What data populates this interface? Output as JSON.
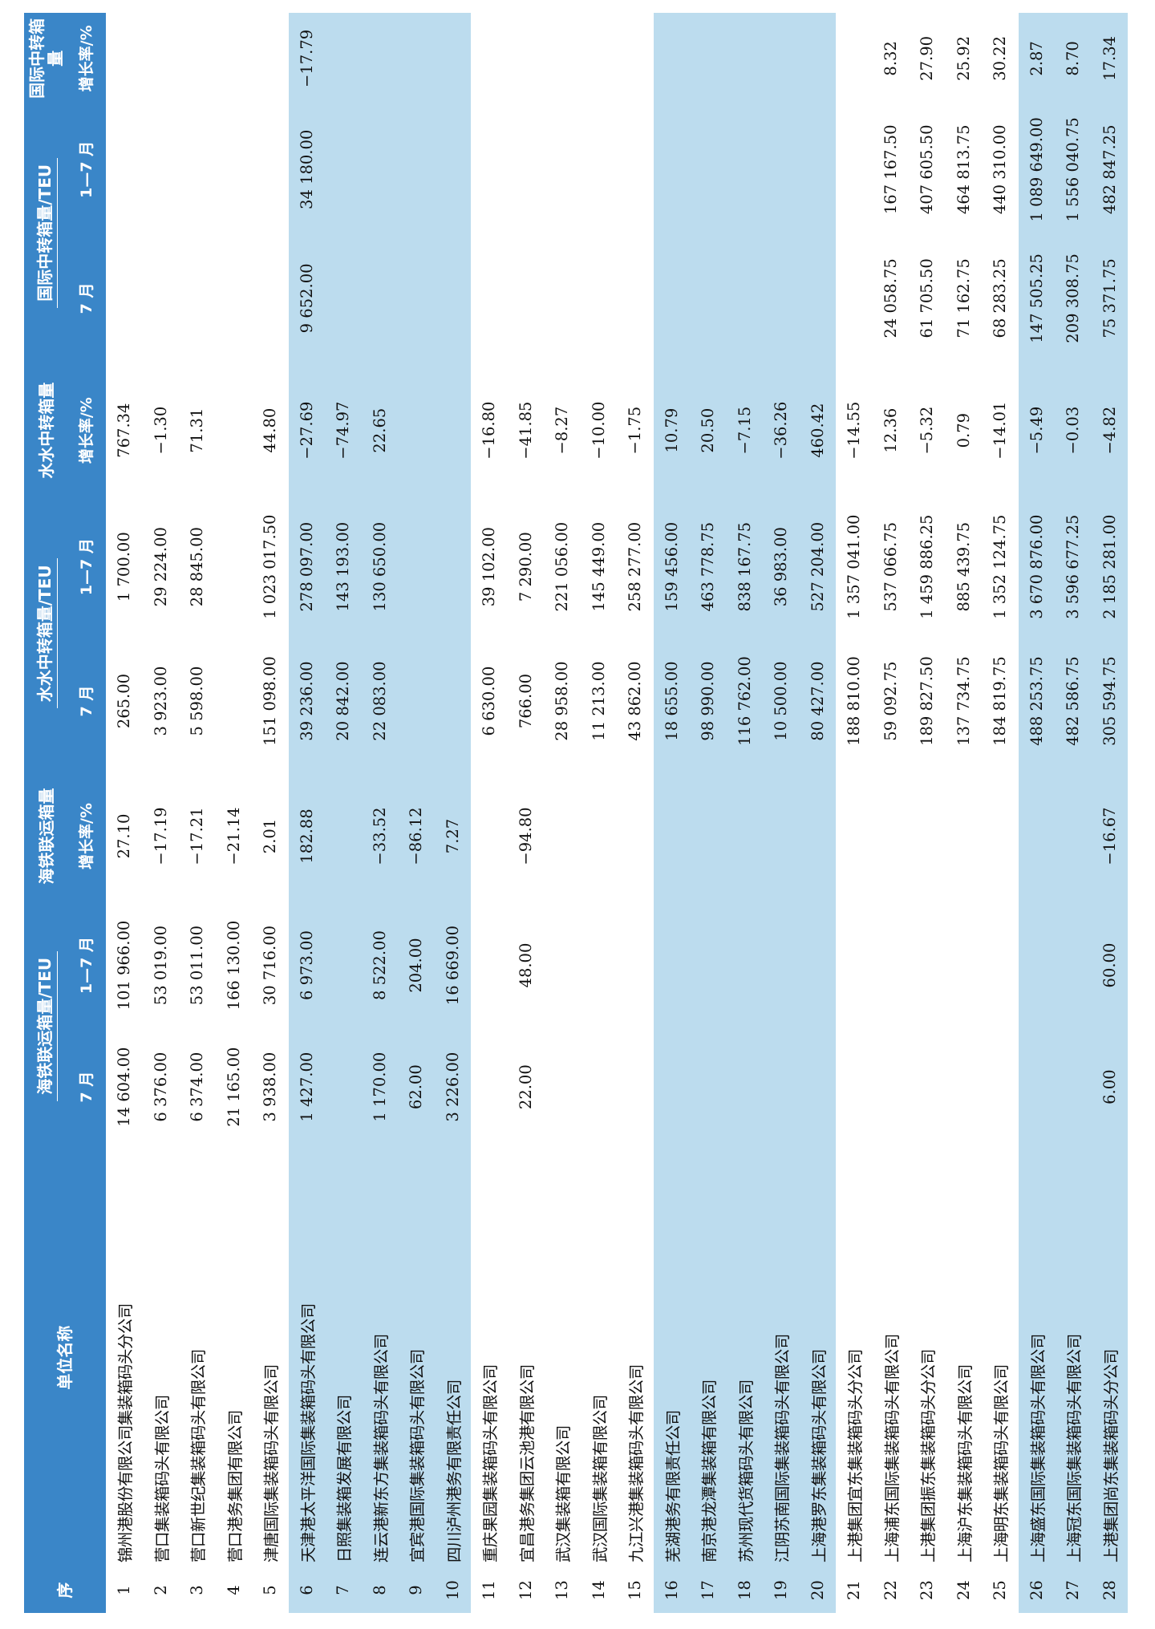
{
  "headers": {
    "seq": "序",
    "name": "单位名称",
    "groups": [
      "海铁联运箱量/TEU",
      "海铁联运箱量",
      "水水中转箱量/TEU",
      "水水中转箱量",
      "国际中转箱量/TEU",
      "国际中转箱量"
    ],
    "sub": [
      "7 月",
      "1—7 月",
      "增长率/%",
      "7 月",
      "1—7 月",
      "增长率/%",
      "7 月",
      "1—7 月",
      "增长率/%"
    ]
  },
  "rows": [
    {
      "seq": "1",
      "name": "锦州港股份有限公司集装箱码头分公司",
      "v": [
        "14 604.00",
        "101 966.00",
        "27.10",
        "265.00",
        "1 700.00",
        "767.34",
        "",
        "",
        ""
      ],
      "shade": false
    },
    {
      "seq": "2",
      "name": "营口集装箱码头有限公司",
      "v": [
        "6 376.00",
        "53 019.00",
        "−17.19",
        "3 923.00",
        "29 224.00",
        "−1.30",
        "",
        "",
        ""
      ],
      "shade": false
    },
    {
      "seq": "3",
      "name": "营口新世纪集装箱码头有限公司",
      "v": [
        "6 374.00",
        "53 011.00",
        "−17.21",
        "5 598.00",
        "28 845.00",
        "71.31",
        "",
        "",
        ""
      ],
      "shade": false
    },
    {
      "seq": "4",
      "name": "营口港务集团有限公司",
      "v": [
        "21 165.00",
        "166 130.00",
        "−21.14",
        "",
        "",
        "",
        "",
        "",
        ""
      ],
      "shade": false
    },
    {
      "seq": "5",
      "name": "津唐国际集装箱码头有限公司",
      "v": [
        "3 938.00",
        "30 716.00",
        "2.01",
        "151 098.00",
        "1 023 017.50",
        "44.80",
        "",
        "",
        ""
      ],
      "shade": false
    },
    {
      "seq": "6",
      "name": "天津港太平洋国际集装箱码头有限公司",
      "v": [
        "1 427.00",
        "6 973.00",
        "182.88",
        "39 236.00",
        "278 097.00",
        "−27.69",
        "9 652.00",
        "34 180.00",
        "−17.79"
      ],
      "shade": true
    },
    {
      "seq": "7",
      "name": "日照集装箱发展有限公司",
      "v": [
        "",
        "",
        "",
        "20 842.00",
        "143 193.00",
        "−74.97",
        "",
        "",
        ""
      ],
      "shade": true
    },
    {
      "seq": "8",
      "name": "连云港新东方集装箱码头有限公司",
      "v": [
        "1 170.00",
        "8 522.00",
        "−33.52",
        "22 083.00",
        "130 650.00",
        "22.65",
        "",
        "",
        ""
      ],
      "shade": true
    },
    {
      "seq": "9",
      "name": "宜宾港国际集装箱码头有限公司",
      "v": [
        "62.00",
        "204.00",
        "−86.12",
        "",
        "",
        "",
        "",
        "",
        ""
      ],
      "shade": true
    },
    {
      "seq": "10",
      "name": "四川泸州港务有限责任公司",
      "v": [
        "3 226.00",
        "16 669.00",
        "7.27",
        "",
        "",
        "",
        "",
        "",
        ""
      ],
      "shade": true
    },
    {
      "seq": "11",
      "name": "重庆果园集装箱码头有限公司",
      "v": [
        "",
        "",
        "",
        "6 630.00",
        "39 102.00",
        "−16.80",
        "",
        "",
        ""
      ],
      "shade": false
    },
    {
      "seq": "12",
      "name": "宜昌港务集团云池港有限公司",
      "v": [
        "22.00",
        "48.00",
        "−94.80",
        "766.00",
        "7 290.00",
        "−41.85",
        "",
        "",
        ""
      ],
      "shade": false
    },
    {
      "seq": "13",
      "name": "武汉集装箱有限公司",
      "v": [
        "",
        "",
        "",
        "28 958.00",
        "221 056.00",
        "−8.27",
        "",
        "",
        ""
      ],
      "shade": false
    },
    {
      "seq": "14",
      "name": "武汉国际集装箱有限公司",
      "v": [
        "",
        "",
        "",
        "11 213.00",
        "145 449.00",
        "−10.00",
        "",
        "",
        ""
      ],
      "shade": false
    },
    {
      "seq": "15",
      "name": "九江兴港集装箱码头有限公司",
      "v": [
        "",
        "",
        "",
        "43 862.00",
        "258 277.00",
        "−1.75",
        "",
        "",
        ""
      ],
      "shade": false
    },
    {
      "seq": "16",
      "name": "芜湖港务有限责任公司",
      "v": [
        "",
        "",
        "",
        "18 655.00",
        "159 456.00",
        "10.79",
        "",
        "",
        ""
      ],
      "shade": true
    },
    {
      "seq": "17",
      "name": "南京港龙潭集装箱有限公司",
      "v": [
        "",
        "",
        "",
        "98 990.00",
        "463 778.75",
        "20.50",
        "",
        "",
        ""
      ],
      "shade": true
    },
    {
      "seq": "18",
      "name": "苏州现代货箱码头有限公司",
      "v": [
        "",
        "",
        "",
        "116 762.00",
        "838 167.75",
        "−7.15",
        "",
        "",
        ""
      ],
      "shade": true
    },
    {
      "seq": "19",
      "name": "江阴苏南国际集装箱码头有限公司",
      "v": [
        "",
        "",
        "",
        "10 500.00",
        "36 983.00",
        "−36.26",
        "",
        "",
        ""
      ],
      "shade": true
    },
    {
      "seq": "20",
      "name": "上海港罗东集装箱码头有限公司",
      "v": [
        "",
        "",
        "",
        "80 427.00",
        "527 204.00",
        "460.42",
        "",
        "",
        ""
      ],
      "shade": true
    },
    {
      "seq": "21",
      "name": "上港集团宜东集装箱码头分公司",
      "v": [
        "",
        "",
        "",
        "188 810.00",
        "1 357 041.00",
        "−14.55",
        "",
        "",
        ""
      ],
      "shade": false
    },
    {
      "seq": "22",
      "name": "上海浦东国际集装箱码头有限公司",
      "v": [
        "",
        "",
        "",
        "59 092.75",
        "537 066.75",
        "12.36",
        "24 058.75",
        "167 167.50",
        "8.32"
      ],
      "shade": false
    },
    {
      "seq": "23",
      "name": "上港集团振东集装箱码头分公司",
      "v": [
        "",
        "",
        "",
        "189 827.50",
        "1 459 886.25",
        "−5.32",
        "61 705.50",
        "407 605.50",
        "27.90"
      ],
      "shade": false
    },
    {
      "seq": "24",
      "name": "上海沪东集装箱码头有限公司",
      "v": [
        "",
        "",
        "",
        "137 734.75",
        "885 439.75",
        "0.79",
        "71 162.75",
        "464 813.75",
        "25.92"
      ],
      "shade": false
    },
    {
      "seq": "25",
      "name": "上海明东集装箱码头有限公司",
      "v": [
        "",
        "",
        "",
        "184 819.75",
        "1 352 124.75",
        "−14.01",
        "68 283.25",
        "440 310.00",
        "30.22"
      ],
      "shade": false
    },
    {
      "seq": "26",
      "name": "上海盛东国际集装箱码头有限公司",
      "v": [
        "",
        "",
        "",
        "488 253.75",
        "3 670 876.00",
        "−5.49",
        "147 505.25",
        "1 089 649.00",
        "2.87"
      ],
      "shade": true
    },
    {
      "seq": "27",
      "name": "上海冠东国际集装箱码头有限公司",
      "v": [
        "",
        "",
        "",
        "482 586.75",
        "3 596 677.25",
        "−0.03",
        "209 308.75",
        "1 556 040.75",
        "8.70"
      ],
      "shade": true
    },
    {
      "seq": "28",
      "name": "上港集团尚东集装箱码头分公司",
      "v": [
        "6.00",
        "60.00",
        "−16.67",
        "305 594.75",
        "2 185 281.00",
        "−4.82",
        "75 371.75",
        "482 847.25",
        "17.34"
      ],
      "shade": true
    }
  ]
}
